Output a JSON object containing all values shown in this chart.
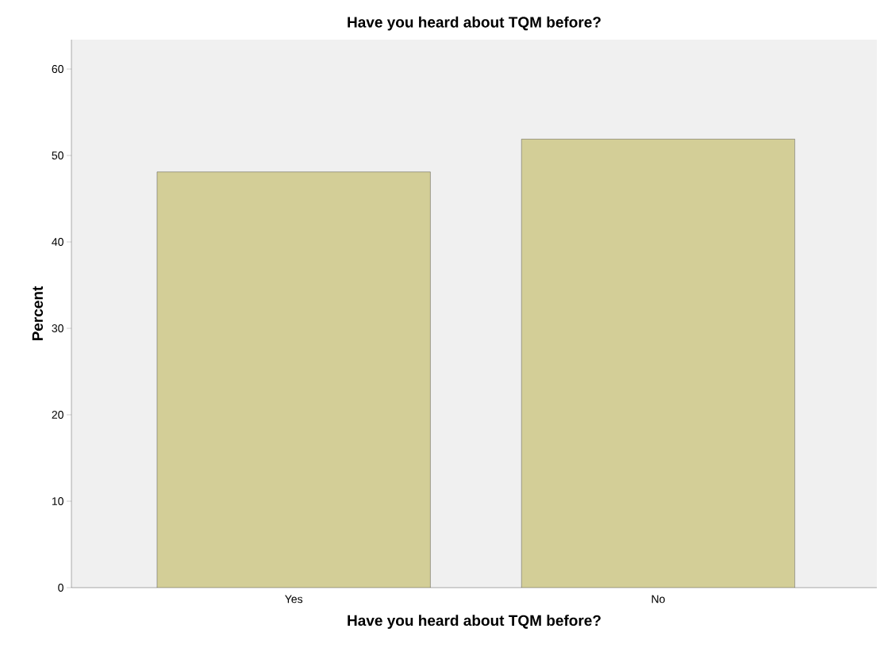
{
  "chart_data": {
    "type": "bar",
    "title": "Have you heard about TQM before?",
    "xlabel": "Have you heard about TQM before?",
    "ylabel": "Percent",
    "categories": [
      "Yes",
      "No"
    ],
    "values": [
      48.1,
      51.9
    ],
    "color": "#d3ce97",
    "ylim": [
      0,
      63.4
    ],
    "yticks": [
      0,
      10,
      20,
      30,
      40,
      50,
      60
    ],
    "grid": false
  }
}
